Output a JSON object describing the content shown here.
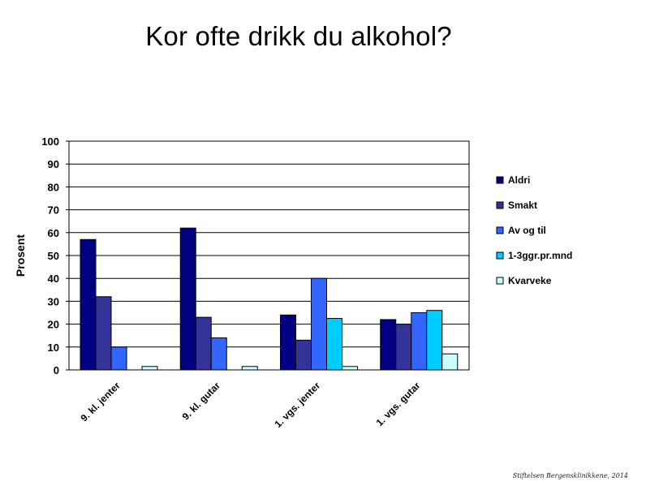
{
  "chart_data": {
    "type": "bar",
    "title": "Kor ofte drikk du alkohol?",
    "ylabel": "Prosent",
    "xlabel": "",
    "ylim": [
      0,
      100
    ],
    "yticks": [
      0,
      10,
      20,
      30,
      40,
      50,
      60,
      70,
      80,
      90,
      100
    ],
    "categories": [
      "9. kl. jenter",
      "9. kl. gutar",
      "1. vgs. jenter",
      "1. vgs. gutar"
    ],
    "series": [
      {
        "name": "Aldri",
        "color": "#000080",
        "values": [
          57,
          62,
          24,
          22
        ]
      },
      {
        "name": "Smakt",
        "color": "#333399",
        "values": [
          32,
          23,
          13,
          20
        ]
      },
      {
        "name": "Av og til",
        "color": "#3366ff",
        "values": [
          10,
          14,
          40,
          25
        ]
      },
      {
        "name": "1-3ggr.pr.mnd",
        "color": "#00ccff",
        "values": [
          0,
          0,
          22.5,
          26
        ]
      },
      {
        "name": "Kvarveke",
        "color": "#ccffff",
        "values": [
          1.5,
          1.5,
          1.5,
          7
        ]
      }
    ],
    "grid": true,
    "legend_position": "right"
  },
  "credit": "Stiftelsen Bergensklinikkene, 2014"
}
